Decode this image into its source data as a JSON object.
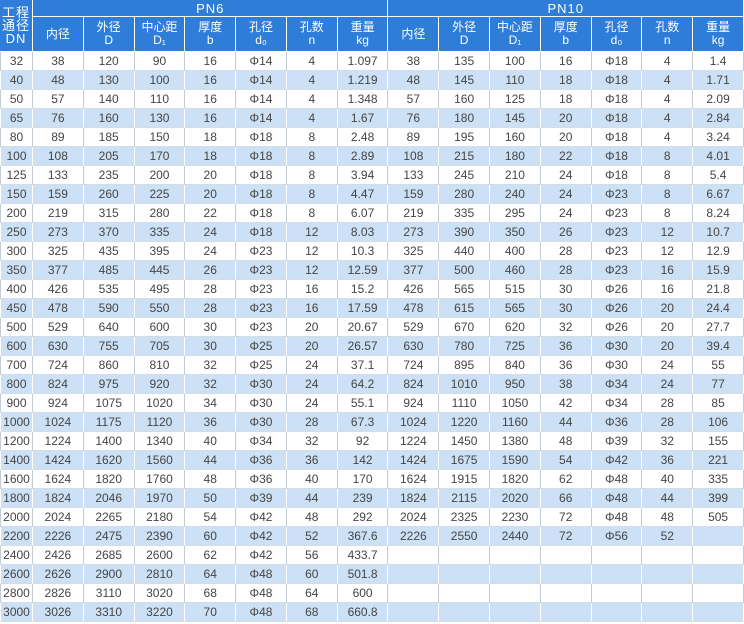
{
  "table": {
    "corner_header_lines": [
      "工程",
      "通径",
      "DN"
    ],
    "groups": [
      {
        "key": "pn6",
        "label": "PN6"
      },
      {
        "key": "pn10",
        "label": "PN10"
      }
    ],
    "columns": [
      {
        "key": "inner-diameter",
        "title": "内径",
        "sub": ""
      },
      {
        "key": "outer-diameter",
        "title": "外径",
        "sub": "D"
      },
      {
        "key": "center-distance",
        "title": "中心距",
        "sub": "D₁"
      },
      {
        "key": "thickness",
        "title": "厚度",
        "sub": "b"
      },
      {
        "key": "hole-diameter",
        "title": "孔径",
        "sub": "d₀"
      },
      {
        "key": "hole-count",
        "title": "孔数",
        "sub": "n"
      },
      {
        "key": "weight",
        "title": "重量",
        "sub": "kg"
      }
    ],
    "rows": [
      [
        "32",
        "38",
        "120",
        "90",
        "16",
        "Φ14",
        "4",
        "1.097",
        "38",
        "135",
        "100",
        "16",
        "Φ18",
        "4",
        "1.4"
      ],
      [
        "40",
        "48",
        "130",
        "100",
        "16",
        "Φ14",
        "4",
        "1.219",
        "48",
        "145",
        "110",
        "18",
        "Φ18",
        "4",
        "1.71"
      ],
      [
        "50",
        "57",
        "140",
        "110",
        "16",
        "Φ14",
        "4",
        "1.348",
        "57",
        "160",
        "125",
        "18",
        "Φ18",
        "4",
        "2.09"
      ],
      [
        "65",
        "76",
        "160",
        "130",
        "16",
        "Φ14",
        "4",
        "1.67",
        "76",
        "180",
        "145",
        "20",
        "Φ18",
        "4",
        "2.84"
      ],
      [
        "80",
        "89",
        "185",
        "150",
        "18",
        "Φ18",
        "8",
        "2.48",
        "89",
        "195",
        "160",
        "20",
        "Φ18",
        "4",
        "3.24"
      ],
      [
        "100",
        "108",
        "205",
        "170",
        "18",
        "Φ18",
        "8",
        "2.89",
        "108",
        "215",
        "180",
        "22",
        "Φ18",
        "8",
        "4.01"
      ],
      [
        "125",
        "133",
        "235",
        "200",
        "20",
        "Φ18",
        "8",
        "3.94",
        "133",
        "245",
        "210",
        "24",
        "Φ18",
        "8",
        "5.4"
      ],
      [
        "150",
        "159",
        "260",
        "225",
        "20",
        "Φ18",
        "8",
        "4.47",
        "159",
        "280",
        "240",
        "24",
        "Φ23",
        "8",
        "6.67"
      ],
      [
        "200",
        "219",
        "315",
        "280",
        "22",
        "Φ18",
        "8",
        "6.07",
        "219",
        "335",
        "295",
        "24",
        "Φ23",
        "8",
        "8.24"
      ],
      [
        "250",
        "273",
        "370",
        "335",
        "24",
        "Φ18",
        "12",
        "8.03",
        "273",
        "390",
        "350",
        "26",
        "Φ23",
        "12",
        "10.7"
      ],
      [
        "300",
        "325",
        "435",
        "395",
        "24",
        "Φ23",
        "12",
        "10.3",
        "325",
        "440",
        "400",
        "28",
        "Φ23",
        "12",
        "12.9"
      ],
      [
        "350",
        "377",
        "485",
        "445",
        "26",
        "Φ23",
        "12",
        "12.59",
        "377",
        "500",
        "460",
        "28",
        "Φ23",
        "16",
        "15.9"
      ],
      [
        "400",
        "426",
        "535",
        "495",
        "28",
        "Φ23",
        "16",
        "15.2",
        "426",
        "565",
        "515",
        "30",
        "Φ26",
        "16",
        "21.8"
      ],
      [
        "450",
        "478",
        "590",
        "550",
        "28",
        "Φ23",
        "16",
        "17.59",
        "478",
        "615",
        "565",
        "30",
        "Φ26",
        "20",
        "24.4"
      ],
      [
        "500",
        "529",
        "640",
        "600",
        "30",
        "Φ23",
        "20",
        "20.67",
        "529",
        "670",
        "620",
        "32",
        "Φ26",
        "20",
        "27.7"
      ],
      [
        "600",
        "630",
        "755",
        "705",
        "30",
        "Φ25",
        "20",
        "26.57",
        "630",
        "780",
        "725",
        "36",
        "Φ30",
        "20",
        "39.4"
      ],
      [
        "700",
        "724",
        "860",
        "810",
        "32",
        "Φ25",
        "24",
        "37.1",
        "724",
        "895",
        "840",
        "36",
        "Φ30",
        "24",
        "55"
      ],
      [
        "800",
        "824",
        "975",
        "920",
        "32",
        "Φ30",
        "24",
        "64.2",
        "824",
        "1010",
        "950",
        "38",
        "Φ34",
        "24",
        "77"
      ],
      [
        "900",
        "924",
        "1075",
        "1020",
        "34",
        "Φ30",
        "24",
        "55.1",
        "924",
        "1110",
        "1050",
        "42",
        "Φ34",
        "28",
        "85"
      ],
      [
        "1000",
        "1024",
        "1175",
        "1120",
        "36",
        "Φ30",
        "28",
        "67.3",
        "1024",
        "1220",
        "1160",
        "44",
        "Φ36",
        "28",
        "106"
      ],
      [
        "1200",
        "1224",
        "1400",
        "1340",
        "40",
        "Φ34",
        "32",
        "92",
        "1224",
        "1450",
        "1380",
        "48",
        "Φ39",
        "32",
        "155"
      ],
      [
        "1400",
        "1424",
        "1620",
        "1560",
        "44",
        "Φ36",
        "36",
        "142",
        "1424",
        "1675",
        "1590",
        "54",
        "Φ42",
        "36",
        "221"
      ],
      [
        "1600",
        "1624",
        "1820",
        "1760",
        "48",
        "Φ36",
        "40",
        "170",
        "1624",
        "1915",
        "1820",
        "62",
        "Φ48",
        "40",
        "335"
      ],
      [
        "1800",
        "1824",
        "2046",
        "1970",
        "50",
        "Φ39",
        "44",
        "239",
        "1824",
        "2115",
        "2020",
        "66",
        "Φ48",
        "44",
        "399"
      ],
      [
        "2000",
        "2024",
        "2265",
        "2180",
        "54",
        "Φ42",
        "48",
        "292",
        "2024",
        "2325",
        "2230",
        "72",
        "Φ48",
        "48",
        "505"
      ],
      [
        "2200",
        "2226",
        "2475",
        "2390",
        "60",
        "Φ42",
        "52",
        "367.6",
        "2226",
        "2550",
        "2440",
        "72",
        "Φ56",
        "52",
        ""
      ],
      [
        "2400",
        "2426",
        "2685",
        "2600",
        "62",
        "Φ42",
        "56",
        "433.7",
        "",
        "",
        "",
        "",
        "",
        "",
        ""
      ],
      [
        "2600",
        "2626",
        "2900",
        "2810",
        "64",
        "Φ48",
        "60",
        "501.8",
        "",
        "",
        "",
        "",
        "",
        "",
        ""
      ],
      [
        "2800",
        "2826",
        "3110",
        "3020",
        "68",
        "Φ48",
        "64",
        "600",
        "",
        "",
        "",
        "",
        "",
        "",
        ""
      ],
      [
        "3000",
        "3026",
        "3310",
        "3220",
        "70",
        "Φ48",
        "68",
        "660.8",
        "",
        "",
        "",
        "",
        "",
        "",
        ""
      ]
    ]
  },
  "colors": {
    "header_bg": "#2e7dd9",
    "header_text": "#ffffff",
    "row_alt_bg": "#cce1f6",
    "row_bg": "#ffffff",
    "border_vertical": "#c3cdd7",
    "border_horizontal": "#d4dde5",
    "body_text": "#454545"
  }
}
